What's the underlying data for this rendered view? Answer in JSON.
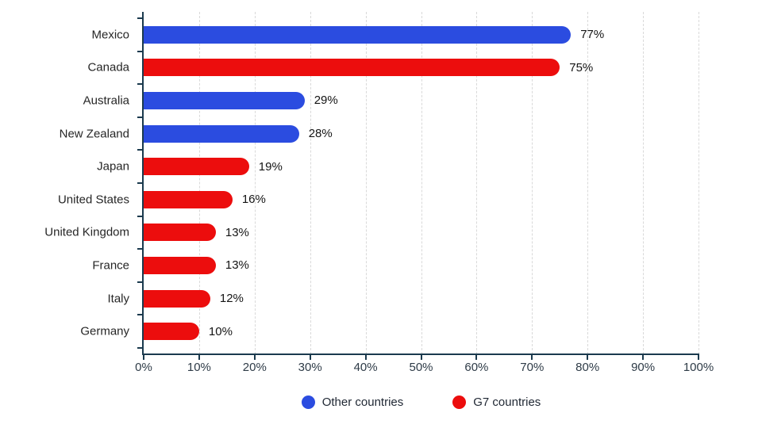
{
  "chart_data": {
    "type": "bar",
    "orientation": "horizontal",
    "title": "",
    "categories": [
      "Mexico",
      "Canada",
      "Australia",
      "New Zealand",
      "Japan",
      "United States",
      "United Kingdom",
      "France",
      "Italy",
      "Germany"
    ],
    "values": [
      77,
      75,
      29,
      28,
      19,
      16,
      13,
      13,
      12,
      10
    ],
    "value_labels": [
      "77%",
      "75%",
      "29%",
      "28%",
      "19%",
      "16%",
      "13%",
      "13%",
      "12%",
      "10%"
    ],
    "point_series": [
      "Other countries",
      "G7 countries",
      "Other countries",
      "Other countries",
      "G7 countries",
      "G7 countries",
      "G7 countries",
      "G7 countries",
      "G7 countries",
      "G7 countries"
    ],
    "series_colors": {
      "Other countries": "#2b4ce0",
      "G7 countries": "#ec0d0d"
    },
    "xlim": [
      0,
      100
    ],
    "x_tick_values": [
      0,
      10,
      20,
      30,
      40,
      50,
      60,
      70,
      80,
      90,
      100
    ],
    "x_tick_labels": [
      "0%",
      "10%",
      "20%",
      "30%",
      "40%",
      "50%",
      "60%",
      "70%",
      "80%",
      "90%",
      "100%"
    ],
    "grid": "vertical-dashed",
    "legend_position": "bottom-center",
    "legend": [
      {
        "label": "Other countries",
        "color": "#2b4ce0"
      },
      {
        "label": "G7 countries",
        "color": "#ec0d0d"
      }
    ]
  },
  "styles": {
    "axis_color": "#1b3a4e",
    "grid_color": "#d9d9d9",
    "category_text_color": "#262626",
    "value_text_color": "#141414",
    "tick_text_color": "#2e3b47",
    "background": "#ffffff"
  }
}
